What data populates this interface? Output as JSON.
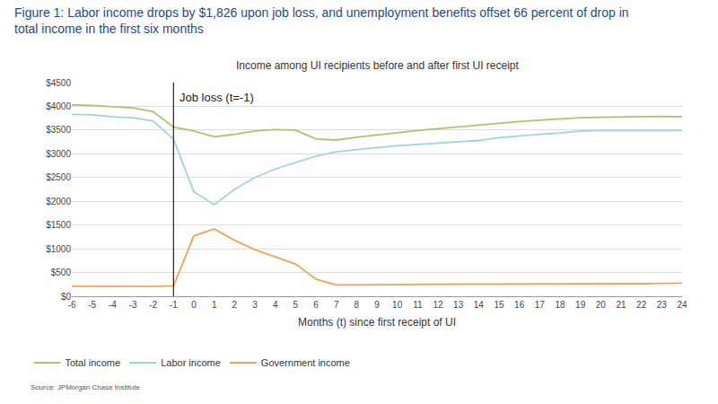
{
  "chart_data": {
    "type": "line",
    "title": "Figure 1: Labor income drops by $1,826 upon job loss, and unemployment benefits offset 66 percent of drop in total income in the first six months",
    "subtitle": "Income among UI recipients before and after first UI receipt",
    "x_label": "Months (t) since first receipt of UI",
    "source": "Source: JPMorgan Chase Institute",
    "x": [
      -6,
      -5,
      -4,
      -3,
      -2,
      -1,
      0,
      1,
      2,
      3,
      4,
      5,
      6,
      7,
      8,
      9,
      10,
      11,
      12,
      13,
      14,
      15,
      16,
      17,
      18,
      19,
      20,
      21,
      22,
      23,
      24
    ],
    "series": [
      {
        "name": "Total income",
        "color": "#a8c66c",
        "values": [
          4030,
          4020,
          3990,
          3970,
          3890,
          3560,
          3480,
          3360,
          3410,
          3480,
          3510,
          3500,
          3310,
          3290,
          3350,
          3400,
          3450,
          3490,
          3530,
          3570,
          3600,
          3650,
          3680,
          3710,
          3740,
          3760,
          3770,
          3780,
          3790,
          3790,
          3780
        ]
      },
      {
        "name": "Labor income",
        "color": "#9fd4dc",
        "values": [
          3830,
          3820,
          3780,
          3760,
          3690,
          3310,
          2200,
          1930,
          2250,
          2500,
          2680,
          2820,
          2950,
          3040,
          3090,
          3130,
          3170,
          3200,
          3230,
          3260,
          3280,
          3340,
          3380,
          3410,
          3440,
          3480,
          3490,
          3490,
          3500,
          3500,
          3490
        ]
      },
      {
        "name": "Government income",
        "color": "#f2a35a",
        "values": [
          210,
          210,
          205,
          205,
          205,
          220,
          1270,
          1420,
          1180,
          980,
          830,
          680,
          360,
          240,
          240,
          245,
          245,
          250,
          250,
          255,
          255,
          255,
          255,
          255,
          260,
          260,
          265,
          265,
          265,
          270,
          275
        ]
      }
    ],
    "annotations": [
      {
        "text": "Job loss (t=-1)",
        "x": -1
      }
    ],
    "xlim": [
      -6,
      24
    ],
    "xticks": [
      -6,
      -5,
      -4,
      -3,
      -2,
      -1,
      0,
      1,
      2,
      3,
      4,
      5,
      6,
      7,
      8,
      9,
      10,
      11,
      12,
      13,
      14,
      15,
      16,
      17,
      18,
      19,
      20,
      21,
      22,
      23,
      24
    ],
    "ylim": [
      0,
      4500
    ],
    "yticks": [
      {
        "value": 0,
        "label": "$0"
      },
      {
        "value": 500,
        "label": "$500"
      },
      {
        "value": 1000,
        "label": "$1000"
      },
      {
        "value": 1500,
        "label": "$1500"
      },
      {
        "value": 2000,
        "label": "$2000"
      },
      {
        "value": 2500,
        "label": "$2500"
      },
      {
        "value": 3000,
        "label": "$3000"
      },
      {
        "value": 3500,
        "label": "$3500"
      },
      {
        "value": 4000,
        "label": "$4000"
      },
      {
        "value": 4500,
        "label": "$4500"
      }
    ],
    "grid": true,
    "legend": "bottom"
  }
}
